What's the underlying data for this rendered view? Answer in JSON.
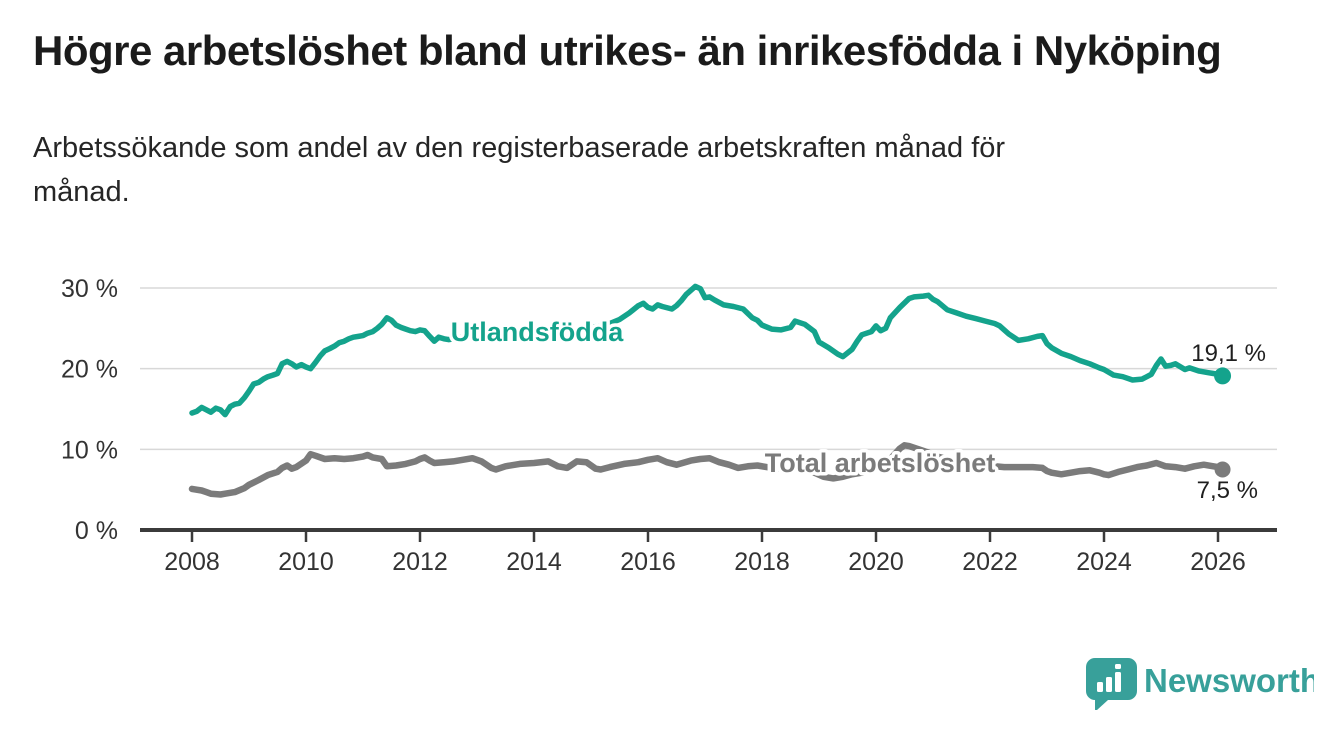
{
  "title": "Högre arbetslöshet bland utrikes- än inrikesfödda i Nyköping",
  "subtitle": {
    "lines": [
      "Arbetssökande som andel av den registerbaserade arbetskraften månad för",
      "månad."
    ]
  },
  "branding": {
    "logo_label": "Newsworthy",
    "logo_color": "#38a09a"
  },
  "chart_data": {
    "type": "line",
    "grid": true,
    "unit": "%",
    "x_axis": {
      "range": [
        2007.1,
        2027.05
      ],
      "ticks": [
        2008,
        2010,
        2012,
        2014,
        2016,
        2018,
        2020,
        2022,
        2024,
        2026
      ],
      "tick_labels": [
        "2008",
        "2010",
        "2012",
        "2014",
        "2016",
        "2018",
        "2020",
        "2022",
        "2024",
        "2026"
      ]
    },
    "y_axis": {
      "range": [
        0,
        31
      ],
      "ticks": [
        0,
        10,
        20,
        30
      ],
      "tick_labels": [
        "0 %",
        "10 %",
        "20 %",
        "30 %"
      ]
    },
    "series": [
      {
        "name": "Utlandsfödda",
        "color": "#14a38c",
        "end_label": "19,1 %",
        "end_value": 19.1,
        "points": [
          [
            2008.0,
            14.5
          ],
          [
            2008.08,
            14.7
          ],
          [
            2008.17,
            15.2
          ],
          [
            2008.25,
            14.9
          ],
          [
            2008.33,
            14.6
          ],
          [
            2008.42,
            15.1
          ],
          [
            2008.5,
            14.9
          ],
          [
            2008.58,
            14.3
          ],
          [
            2008.67,
            15.3
          ],
          [
            2008.75,
            15.6
          ],
          [
            2008.83,
            15.7
          ],
          [
            2008.92,
            16.4
          ],
          [
            2009.0,
            17.2
          ],
          [
            2009.08,
            18.1
          ],
          [
            2009.17,
            18.3
          ],
          [
            2009.25,
            18.7
          ],
          [
            2009.33,
            19.0
          ],
          [
            2009.42,
            19.2
          ],
          [
            2009.5,
            19.4
          ],
          [
            2009.58,
            20.6
          ],
          [
            2009.67,
            20.9
          ],
          [
            2009.75,
            20.6
          ],
          [
            2009.83,
            20.2
          ],
          [
            2009.92,
            20.5
          ],
          [
            2010.0,
            20.2
          ],
          [
            2010.08,
            20.0
          ],
          [
            2010.17,
            20.8
          ],
          [
            2010.25,
            21.6
          ],
          [
            2010.33,
            22.2
          ],
          [
            2010.42,
            22.5
          ],
          [
            2010.5,
            22.8
          ],
          [
            2010.58,
            23.2
          ],
          [
            2010.67,
            23.4
          ],
          [
            2010.75,
            23.7
          ],
          [
            2010.83,
            23.9
          ],
          [
            2010.92,
            24.0
          ],
          [
            2011.0,
            24.1
          ],
          [
            2011.08,
            24.4
          ],
          [
            2011.17,
            24.6
          ],
          [
            2011.25,
            25.0
          ],
          [
            2011.33,
            25.5
          ],
          [
            2011.42,
            26.3
          ],
          [
            2011.5,
            26.0
          ],
          [
            2011.58,
            25.4
          ],
          [
            2011.67,
            25.1
          ],
          [
            2011.75,
            24.9
          ],
          [
            2011.83,
            24.7
          ],
          [
            2011.92,
            24.6
          ],
          [
            2012.0,
            24.8
          ],
          [
            2012.08,
            24.7
          ],
          [
            2012.17,
            24.0
          ],
          [
            2012.25,
            23.4
          ],
          [
            2012.33,
            23.9
          ],
          [
            2012.42,
            23.7
          ],
          [
            2012.5,
            23.6
          ],
          [
            2012.67,
            23.8
          ],
          [
            2012.83,
            24.0
          ],
          [
            2013.0,
            23.9
          ],
          [
            2013.17,
            24.1
          ],
          [
            2013.33,
            24.3
          ],
          [
            2013.5,
            24.4
          ],
          [
            2013.67,
            24.2
          ],
          [
            2013.83,
            24.4
          ],
          [
            2014.0,
            24.3
          ],
          [
            2014.17,
            24.5
          ],
          [
            2014.33,
            24.6
          ],
          [
            2014.5,
            24.7
          ],
          [
            2014.67,
            24.6
          ],
          [
            2014.83,
            24.9
          ],
          [
            2015.0,
            25.1
          ],
          [
            2015.17,
            25.3
          ],
          [
            2015.33,
            25.6
          ],
          [
            2015.5,
            26.1
          ],
          [
            2015.67,
            26.9
          ],
          [
            2015.83,
            27.8
          ],
          [
            2015.92,
            28.1
          ],
          [
            2016.0,
            27.6
          ],
          [
            2016.08,
            27.4
          ],
          [
            2016.17,
            27.9
          ],
          [
            2016.25,
            27.7
          ],
          [
            2016.42,
            27.4
          ],
          [
            2016.5,
            27.8
          ],
          [
            2016.58,
            28.4
          ],
          [
            2016.67,
            29.2
          ],
          [
            2016.83,
            30.2
          ],
          [
            2016.92,
            29.9
          ],
          [
            2017.0,
            28.8
          ],
          [
            2017.08,
            28.9
          ],
          [
            2017.17,
            28.5
          ],
          [
            2017.33,
            27.9
          ],
          [
            2017.5,
            27.7
          ],
          [
            2017.67,
            27.4
          ],
          [
            2017.83,
            26.3
          ],
          [
            2017.92,
            26.0
          ],
          [
            2018.0,
            25.4
          ],
          [
            2018.17,
            24.9
          ],
          [
            2018.33,
            24.8
          ],
          [
            2018.5,
            25.1
          ],
          [
            2018.58,
            25.9
          ],
          [
            2018.75,
            25.5
          ],
          [
            2018.92,
            24.6
          ],
          [
            2019.0,
            23.3
          ],
          [
            2019.17,
            22.6
          ],
          [
            2019.33,
            21.8
          ],
          [
            2019.42,
            21.5
          ],
          [
            2019.58,
            22.4
          ],
          [
            2019.67,
            23.4
          ],
          [
            2019.75,
            24.2
          ],
          [
            2019.92,
            24.6
          ],
          [
            2020.0,
            25.3
          ],
          [
            2020.08,
            24.7
          ],
          [
            2020.17,
            25.0
          ],
          [
            2020.25,
            26.3
          ],
          [
            2020.42,
            27.6
          ],
          [
            2020.58,
            28.7
          ],
          [
            2020.67,
            28.9
          ],
          [
            2020.83,
            29.0
          ],
          [
            2020.92,
            29.1
          ],
          [
            2021.0,
            28.6
          ],
          [
            2021.08,
            28.3
          ],
          [
            2021.25,
            27.3
          ],
          [
            2021.42,
            26.9
          ],
          [
            2021.58,
            26.5
          ],
          [
            2021.75,
            26.2
          ],
          [
            2021.92,
            25.9
          ],
          [
            2022.08,
            25.6
          ],
          [
            2022.17,
            25.3
          ],
          [
            2022.33,
            24.3
          ],
          [
            2022.5,
            23.5
          ],
          [
            2022.67,
            23.7
          ],
          [
            2022.83,
            24.0
          ],
          [
            2022.92,
            24.1
          ],
          [
            2023.0,
            23.1
          ],
          [
            2023.08,
            22.6
          ],
          [
            2023.25,
            21.9
          ],
          [
            2023.42,
            21.5
          ],
          [
            2023.58,
            21.0
          ],
          [
            2023.75,
            20.6
          ],
          [
            2023.92,
            20.1
          ],
          [
            2024.0,
            19.9
          ],
          [
            2024.17,
            19.2
          ],
          [
            2024.33,
            19.0
          ],
          [
            2024.5,
            18.6
          ],
          [
            2024.67,
            18.7
          ],
          [
            2024.83,
            19.3
          ],
          [
            2024.92,
            20.4
          ],
          [
            2025.0,
            21.2
          ],
          [
            2025.08,
            20.3
          ],
          [
            2025.17,
            20.4
          ],
          [
            2025.25,
            20.6
          ],
          [
            2025.42,
            19.9
          ],
          [
            2025.5,
            20.1
          ],
          [
            2025.67,
            19.7
          ],
          [
            2025.83,
            19.5
          ],
          [
            2025.92,
            19.4
          ],
          [
            2026.0,
            19.3
          ],
          [
            2026.08,
            19.1
          ]
        ]
      },
      {
        "name": "Total arbetslöshet",
        "color": "#7b7b7b",
        "end_label": "7,5 %",
        "end_value": 7.5,
        "points": [
          [
            2008.0,
            5.1
          ],
          [
            2008.08,
            5.0
          ],
          [
            2008.17,
            4.9
          ],
          [
            2008.25,
            4.7
          ],
          [
            2008.33,
            4.5
          ],
          [
            2008.5,
            4.4
          ],
          [
            2008.58,
            4.5
          ],
          [
            2008.75,
            4.7
          ],
          [
            2008.92,
            5.2
          ],
          [
            2009.0,
            5.6
          ],
          [
            2009.17,
            6.2
          ],
          [
            2009.33,
            6.8
          ],
          [
            2009.5,
            7.2
          ],
          [
            2009.58,
            7.7
          ],
          [
            2009.67,
            8.0
          ],
          [
            2009.75,
            7.6
          ],
          [
            2009.83,
            7.8
          ],
          [
            2010.0,
            8.6
          ],
          [
            2010.08,
            9.4
          ],
          [
            2010.17,
            9.2
          ],
          [
            2010.33,
            8.8
          ],
          [
            2010.5,
            8.9
          ],
          [
            2010.67,
            8.8
          ],
          [
            2010.83,
            8.9
          ],
          [
            2011.0,
            9.1
          ],
          [
            2011.08,
            9.3
          ],
          [
            2011.17,
            9.0
          ],
          [
            2011.33,
            8.8
          ],
          [
            2011.42,
            7.9
          ],
          [
            2011.58,
            8.0
          ],
          [
            2011.75,
            8.2
          ],
          [
            2011.92,
            8.5
          ],
          [
            2012.0,
            8.8
          ],
          [
            2012.08,
            9.0
          ],
          [
            2012.17,
            8.6
          ],
          [
            2012.25,
            8.3
          ],
          [
            2012.42,
            8.4
          ],
          [
            2012.58,
            8.5
          ],
          [
            2012.75,
            8.7
          ],
          [
            2012.92,
            8.9
          ],
          [
            2013.08,
            8.5
          ],
          [
            2013.25,
            7.7
          ],
          [
            2013.33,
            7.5
          ],
          [
            2013.5,
            7.9
          ],
          [
            2013.75,
            8.2
          ],
          [
            2014.0,
            8.3
          ],
          [
            2014.25,
            8.5
          ],
          [
            2014.42,
            7.9
          ],
          [
            2014.58,
            7.7
          ],
          [
            2014.75,
            8.5
          ],
          [
            2014.92,
            8.4
          ],
          [
            2015.08,
            7.6
          ],
          [
            2015.17,
            7.5
          ],
          [
            2015.33,
            7.8
          ],
          [
            2015.58,
            8.2
          ],
          [
            2015.83,
            8.4
          ],
          [
            2016.0,
            8.7
          ],
          [
            2016.17,
            8.9
          ],
          [
            2016.33,
            8.4
          ],
          [
            2016.5,
            8.1
          ],
          [
            2016.75,
            8.6
          ],
          [
            2016.92,
            8.8
          ],
          [
            2017.08,
            8.9
          ],
          [
            2017.25,
            8.4
          ],
          [
            2017.42,
            8.1
          ],
          [
            2017.58,
            7.7
          ],
          [
            2017.75,
            7.9
          ],
          [
            2017.92,
            8.0
          ],
          [
            2018.08,
            7.8
          ],
          [
            2018.25,
            7.6
          ],
          [
            2018.5,
            7.9
          ],
          [
            2018.75,
            7.6
          ],
          [
            2018.92,
            7.1
          ],
          [
            2019.08,
            6.6
          ],
          [
            2019.25,
            6.4
          ],
          [
            2019.42,
            6.6
          ],
          [
            2019.58,
            6.9
          ],
          [
            2019.75,
            7.1
          ],
          [
            2019.92,
            7.4
          ],
          [
            2020.08,
            7.8
          ],
          [
            2020.25,
            8.8
          ],
          [
            2020.42,
            10.1
          ],
          [
            2020.5,
            10.5
          ],
          [
            2020.58,
            10.4
          ],
          [
            2020.75,
            10.0
          ],
          [
            2020.92,
            9.6
          ],
          [
            2021.08,
            9.1
          ],
          [
            2021.25,
            8.8
          ],
          [
            2021.42,
            8.5
          ],
          [
            2021.58,
            8.3
          ],
          [
            2021.75,
            8.1
          ],
          [
            2021.92,
            8.0
          ],
          [
            2022.08,
            7.9
          ],
          [
            2022.25,
            7.8
          ],
          [
            2022.42,
            7.8
          ],
          [
            2022.58,
            7.8
          ],
          [
            2022.75,
            7.8
          ],
          [
            2022.92,
            7.7
          ],
          [
            2023.0,
            7.3
          ],
          [
            2023.08,
            7.1
          ],
          [
            2023.25,
            6.9
          ],
          [
            2023.42,
            7.1
          ],
          [
            2023.58,
            7.3
          ],
          [
            2023.75,
            7.4
          ],
          [
            2023.92,
            7.1
          ],
          [
            2024.0,
            6.9
          ],
          [
            2024.08,
            6.8
          ],
          [
            2024.25,
            7.2
          ],
          [
            2024.42,
            7.5
          ],
          [
            2024.58,
            7.8
          ],
          [
            2024.75,
            8.0
          ],
          [
            2024.92,
            8.3
          ],
          [
            2025.08,
            7.9
          ],
          [
            2025.25,
            7.8
          ],
          [
            2025.42,
            7.6
          ],
          [
            2025.58,
            7.9
          ],
          [
            2025.75,
            8.1
          ],
          [
            2025.92,
            7.9
          ],
          [
            2026.0,
            7.8
          ],
          [
            2026.08,
            7.5
          ]
        ]
      }
    ]
  }
}
